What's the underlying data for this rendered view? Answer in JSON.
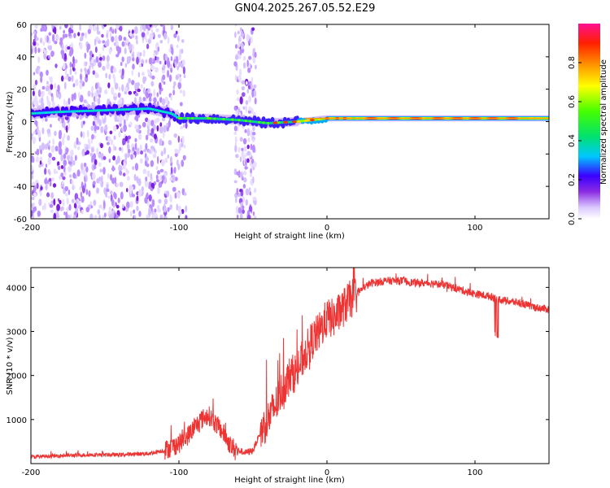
{
  "title": "GN04.2025.267.05.52.E29",
  "chart_data": [
    {
      "type": "heatmap",
      "title": "GN04.2025.267.05.52.E29",
      "xlabel": "Height of straight line (km)",
      "ylabel": "Frequency (Hz)",
      "xlim": [
        -200,
        150
      ],
      "ylim": [
        -60,
        60
      ],
      "xticks": [
        -200,
        -100,
        0,
        100
      ],
      "yticks": [
        -60,
        -40,
        -20,
        0,
        20,
        40,
        60
      ],
      "colorbar": {
        "label": "Normalized spectral amplitude",
        "range": [
          0.0,
          1.0
        ],
        "ticks": [
          0.0,
          0.2,
          0.4,
          0.6,
          0.8
        ]
      },
      "ridge": [
        {
          "x": -200,
          "f": 5
        },
        {
          "x": -180,
          "f": 6
        },
        {
          "x": -150,
          "f": 7
        },
        {
          "x": -120,
          "f": 8
        },
        {
          "x": -105,
          "f": 5
        },
        {
          "x": -100,
          "f": 2
        },
        {
          "x": -80,
          "f": 2
        },
        {
          "x": -60,
          "f": 1
        },
        {
          "x": -40,
          "f": -1
        },
        {
          "x": -20,
          "f": 0
        },
        {
          "x": 0,
          "f": 2
        },
        {
          "x": 50,
          "f": 2
        },
        {
          "x": 100,
          "f": 2
        },
        {
          "x": 150,
          "f": 2
        }
      ]
    },
    {
      "type": "line",
      "xlabel": "Height of straight line (km)",
      "ylabel": "SNR (10 * v/v)",
      "xlim": [
        -200,
        150
      ],
      "ylim": [
        0,
        4450
      ],
      "xticks": [
        -200,
        -100,
        0,
        100
      ],
      "yticks": [
        1000,
        2000,
        3000,
        4000
      ],
      "color": "#ee3333",
      "series": [
        {
          "name": "SNR",
          "x": [
            -200,
            -180,
            -160,
            -140,
            -120,
            -110,
            -100,
            -95,
            -90,
            -85,
            -80,
            -75,
            -70,
            -65,
            -60,
            -55,
            -50,
            -45,
            -40,
            -35,
            -30,
            -25,
            -20,
            -15,
            -10,
            -5,
            0,
            5,
            10,
            15,
            20,
            25,
            30,
            40,
            50,
            60,
            70,
            80,
            90,
            100,
            110,
            115,
            120,
            130,
            140,
            150
          ],
          "y": [
            150,
            180,
            200,
            200,
            230,
            300,
            450,
            600,
            800,
            1000,
            1100,
            900,
            700,
            400,
            300,
            250,
            300,
            700,
            1000,
            1300,
            1700,
            2000,
            2100,
            2500,
            2800,
            3000,
            3300,
            3300,
            3500,
            3700,
            3850,
            4000,
            4100,
            4150,
            4150,
            4100,
            4100,
            4050,
            3950,
            3850,
            3800,
            3750,
            3700,
            3650,
            3550,
            3500
          ]
        }
      ]
    }
  ]
}
